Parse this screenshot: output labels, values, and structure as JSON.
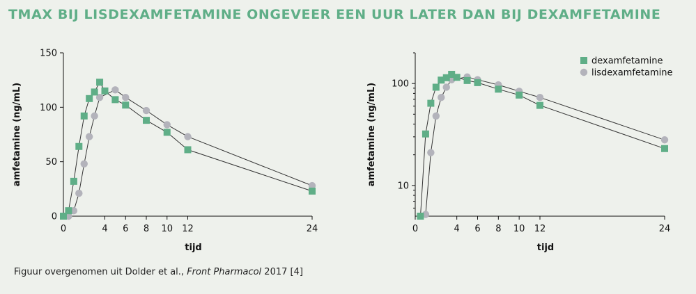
{
  "title": "TMAX BIJ LISDEXAMFETAMINE ONGEVEER EEN UUR LATER DAN BIJ DEXAMFETAMINE",
  "caption": {
    "prefix": "Figuur overgenomen uit Dolder et al., ",
    "journal": "Front Pharmacol",
    "suffix": " 2017 [4]"
  },
  "colors": {
    "dexamfetamine": "#5fae87",
    "lisdexamfetamine": "#b3b3bb",
    "line": "#333333"
  },
  "chart_data": [
    {
      "type": "line",
      "scale": "linear",
      "xlabel": "tijd",
      "ylabel": "amfetamine (ng/mL)",
      "xlim": [
        0,
        24
      ],
      "ylim": [
        0,
        150
      ],
      "x_ticks": [
        0,
        4,
        6,
        8,
        10,
        12,
        24
      ],
      "y_ticks": [
        0,
        50,
        100,
        150
      ],
      "grid": false,
      "series": [
        {
          "name": "dexamfetamine",
          "marker": "square",
          "x": [
            0,
            0.5,
            1,
            1.5,
            2,
            2.5,
            3,
            3.5,
            4,
            5,
            6,
            8,
            10,
            12,
            24
          ],
          "y": [
            0,
            5,
            32,
            64,
            92,
            108,
            114,
            123,
            115,
            107,
            102,
            88,
            77,
            61,
            23
          ]
        },
        {
          "name": "lisdexamfetamine",
          "marker": "circle",
          "x": [
            0.5,
            1,
            1.5,
            2,
            2.5,
            3,
            3.5,
            5,
            6,
            8,
            10,
            12,
            24
          ],
          "y": [
            0,
            5,
            21,
            48,
            73,
            92,
            109,
            116,
            109,
            97,
            84,
            73,
            28
          ]
        }
      ]
    },
    {
      "type": "line",
      "scale": "log",
      "xlabel": "tijd",
      "ylabel": "amfetamine (ng/mL)",
      "xlim": [
        0,
        24
      ],
      "ylim": [
        5,
        200
      ],
      "x_ticks": [
        0,
        4,
        6,
        8,
        10,
        12,
        24
      ],
      "y_ticks": [
        10,
        100
      ],
      "grid": false,
      "legend": "top-right",
      "series": [
        {
          "name": "dexamfetamine",
          "marker": "square",
          "x": [
            0.5,
            1,
            1.5,
            2,
            2.5,
            3,
            3.5,
            4,
            5,
            6,
            8,
            10,
            12,
            24
          ],
          "y": [
            5,
            32,
            64,
            92,
            108,
            114,
            123,
            115,
            107,
            102,
            88,
            77,
            61,
            23
          ]
        },
        {
          "name": "lisdexamfetamine",
          "marker": "circle",
          "x": [
            1,
            1.5,
            2,
            2.5,
            3,
            3.5,
            5,
            6,
            8,
            10,
            12,
            24
          ],
          "y": [
            5.2,
            21,
            48,
            73,
            92,
            109,
            116,
            109,
            97,
            84,
            73,
            28
          ]
        }
      ]
    }
  ]
}
